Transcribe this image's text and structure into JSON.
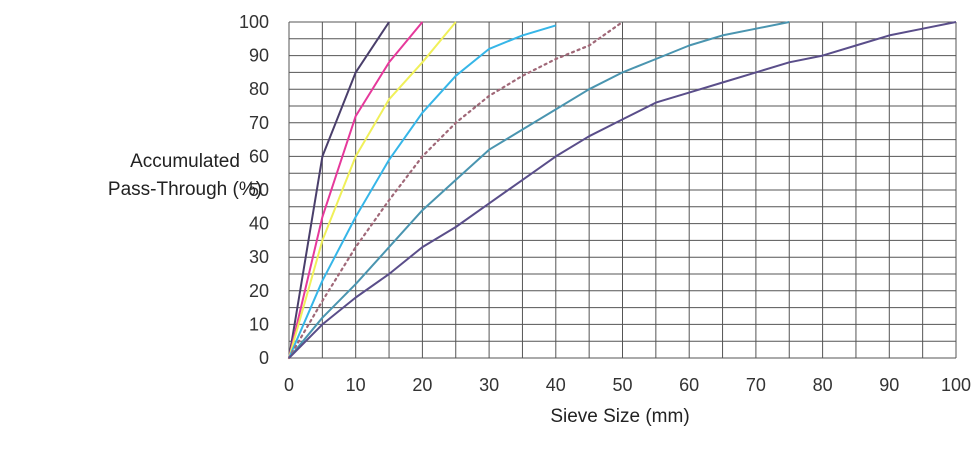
{
  "chart_data": {
    "type": "line",
    "title": "",
    "xlabel": "Sieve Size (mm)",
    "ylabel_line1": "Accumulated",
    "ylabel_line2": "Pass-Through (%)",
    "xlim": [
      0,
      100
    ],
    "ylim": [
      0,
      100
    ],
    "xticks": [
      "0",
      "10",
      "20",
      "30",
      "40",
      "50",
      "60",
      "70",
      "80",
      "90",
      "100"
    ],
    "yticks": [
      "0",
      "10",
      "20",
      "30",
      "40",
      "50",
      "60",
      "70",
      "80",
      "90",
      "100"
    ],
    "grid": true,
    "grid_step_x": 5,
    "grid_step_y": 5,
    "legend": "none",
    "series": [
      {
        "color": "#4a3f6b",
        "style": "solid",
        "x": [
          0,
          5,
          10,
          15
        ],
        "y": [
          0,
          60,
          85,
          100
        ]
      },
      {
        "color": "#e6399b",
        "style": "solid",
        "x": [
          0,
          5,
          10,
          15,
          20
        ],
        "y": [
          0,
          42,
          72,
          88,
          100
        ]
      },
      {
        "color": "#f0f05a",
        "style": "solid",
        "x": [
          0,
          5,
          10,
          15,
          20,
          25
        ],
        "y": [
          0,
          35,
          60,
          77,
          88,
          100
        ]
      },
      {
        "color": "#36b6e8",
        "style": "solid",
        "x": [
          0,
          5,
          10,
          15,
          20,
          25,
          30,
          35,
          40
        ],
        "y": [
          0,
          23,
          42,
          59,
          73,
          84,
          92,
          96,
          99
        ]
      },
      {
        "color": "#a06878",
        "style": "dotted",
        "x": [
          0,
          5,
          10,
          15,
          20,
          25,
          30,
          35,
          40,
          45,
          50
        ],
        "y": [
          0,
          17,
          33,
          47,
          60,
          70,
          78,
          84,
          89,
          93,
          100
        ]
      },
      {
        "color": "#4a95b0",
        "style": "solid",
        "x": [
          0,
          5,
          10,
          15,
          20,
          25,
          30,
          35,
          40,
          45,
          50,
          55,
          60,
          65,
          70,
          75
        ],
        "y": [
          0,
          12,
          22,
          33,
          44,
          53,
          62,
          68,
          74,
          80,
          85,
          89,
          93,
          96,
          98,
          100
        ]
      },
      {
        "color": "#5a4e8a",
        "style": "solid",
        "x": [
          0,
          5,
          10,
          15,
          20,
          25,
          30,
          35,
          40,
          45,
          50,
          55,
          60,
          65,
          70,
          75,
          80,
          85,
          90,
          95,
          100
        ],
        "y": [
          0,
          10,
          18,
          25,
          33,
          39,
          46,
          53,
          60,
          66,
          71,
          76,
          79,
          82,
          85,
          88,
          90,
          93,
          96,
          98,
          100
        ]
      }
    ]
  }
}
